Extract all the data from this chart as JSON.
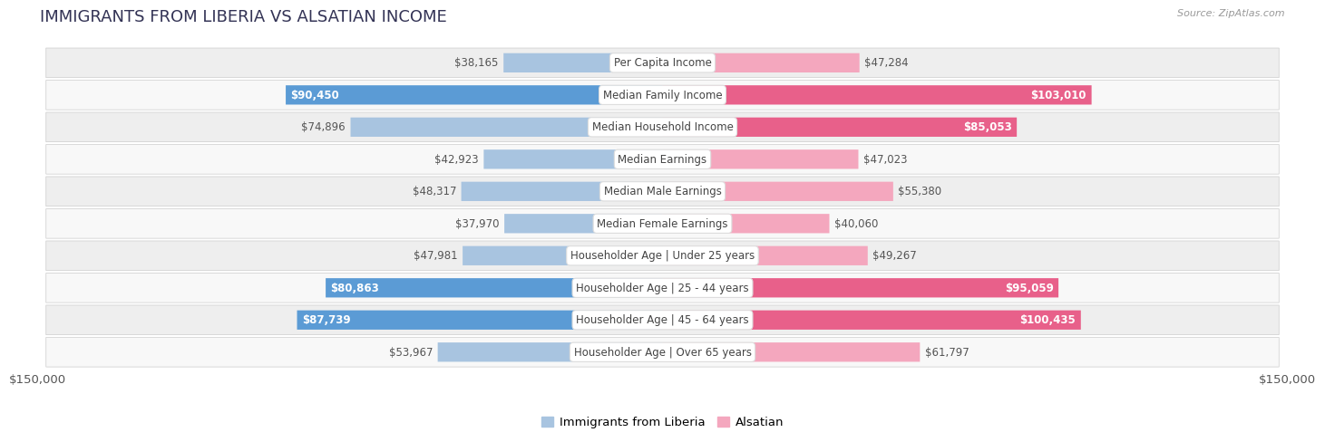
{
  "title": "IMMIGRANTS FROM LIBERIA VS ALSATIAN INCOME",
  "source": "Source: ZipAtlas.com",
  "categories": [
    "Per Capita Income",
    "Median Family Income",
    "Median Household Income",
    "Median Earnings",
    "Median Male Earnings",
    "Median Female Earnings",
    "Householder Age | Under 25 years",
    "Householder Age | 25 - 44 years",
    "Householder Age | 45 - 64 years",
    "Householder Age | Over 65 years"
  ],
  "liberia_values": [
    38165,
    90450,
    74896,
    42923,
    48317,
    37970,
    47981,
    80863,
    87739,
    53967
  ],
  "alsatian_values": [
    47284,
    103010,
    85053,
    47023,
    55380,
    40060,
    49267,
    95059,
    100435,
    61797
  ],
  "liberia_labels": [
    "$38,165",
    "$90,450",
    "$74,896",
    "$42,923",
    "$48,317",
    "$37,970",
    "$47,981",
    "$80,863",
    "$87,739",
    "$53,967"
  ],
  "alsatian_labels": [
    "$47,284",
    "$103,010",
    "$85,053",
    "$47,023",
    "$55,380",
    "$40,060",
    "$49,267",
    "$95,059",
    "$100,435",
    "$61,797"
  ],
  "liberia_color_light": "#a8c4e0",
  "liberia_color_dark": "#5b9bd5",
  "alsatian_color_light": "#f4a7be",
  "alsatian_color_dark": "#e8608a",
  "max_value": 150000,
  "liberia_label": "Immigrants from Liberia",
  "alsatian_label": "Alsatian",
  "fig_bg": "#ffffff",
  "row_bg_even": "#eeeeee",
  "row_bg_odd": "#f8f8f8",
  "large_threshold": 75000,
  "axis_label": "$150,000",
  "title_color": "#333355",
  "label_color": "#555555",
  "label_fontsize": 8.5,
  "cat_fontsize": 8.5,
  "title_fontsize": 13,
  "source_fontsize": 8
}
